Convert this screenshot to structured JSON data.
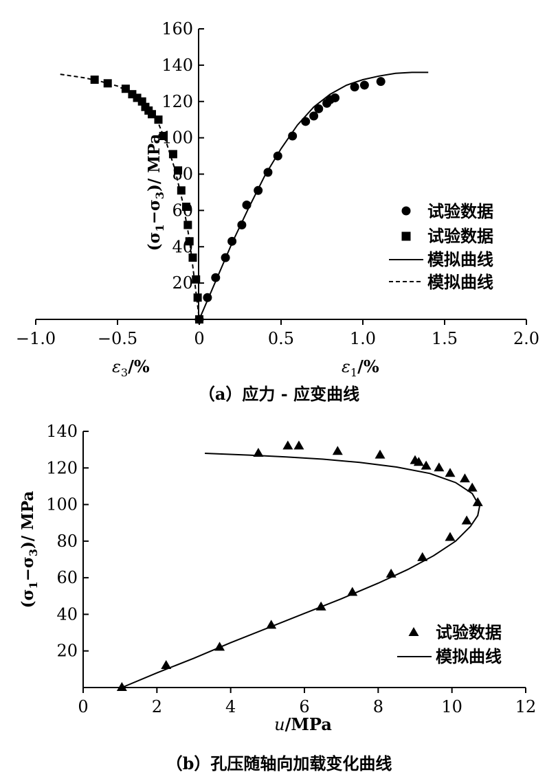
{
  "chart_data": [
    {
      "id": "a",
      "type": "scatter+line",
      "caption": "（a）应力 - 应变曲线",
      "ylabel": "(σ1−σ3)/ MPa",
      "ylabel_parts": {
        "open": "(σ",
        "sub1": "1",
        "minus": "−σ",
        "sub3": "3",
        "close": ")/ MPa"
      },
      "xlabel_left": {
        "main": "ε",
        "sub": "3",
        "unit": "/%"
      },
      "xlabel_right": {
        "main": "ε",
        "sub": "1",
        "unit": "/%"
      },
      "xlim": [
        -1.0,
        2.0
      ],
      "ylim": [
        0,
        160
      ],
      "xticks": [
        -1.0,
        -0.5,
        0,
        0.5,
        1.0,
        1.5,
        2.0
      ],
      "xtick_labels": [
        "−1.0",
        "−0.5",
        "0",
        "0.5",
        "1.0",
        "1.5",
        "2.0"
      ],
      "yticks": [
        20,
        40,
        60,
        80,
        100,
        120,
        140,
        160
      ],
      "ytick_labels": [
        "20",
        "40",
        "60",
        "80",
        "100",
        "120",
        "140",
        "160"
      ],
      "legend": [
        {
          "label": "试验数据",
          "marker": "circle"
        },
        {
          "label": "试验数据",
          "marker": "square"
        },
        {
          "label": "模拟曲线",
          "line": "solid"
        },
        {
          "label": "模拟曲线",
          "line": "dashed"
        }
      ],
      "series": [
        {
          "name": "试验数据 ε1",
          "marker": "circle",
          "x": [
            0.0,
            0.05,
            0.1,
            0.16,
            0.2,
            0.26,
            0.29,
            0.36,
            0.42,
            0.48,
            0.57,
            0.65,
            0.7,
            0.73,
            0.78,
            0.8,
            0.83,
            0.95,
            1.01,
            1.11
          ],
          "y": [
            0,
            12,
            23,
            34,
            43,
            52,
            63,
            71,
            81,
            90,
            101,
            109,
            112,
            116,
            119,
            121,
            122,
            128,
            129,
            131
          ]
        },
        {
          "name": "试验数据 ε3",
          "marker": "square",
          "x": [
            -0.64,
            -0.56,
            -0.45,
            -0.41,
            -0.38,
            -0.35,
            -0.33,
            -0.31,
            -0.29,
            -0.25,
            -0.22,
            -0.16,
            -0.13,
            -0.11,
            -0.08,
            -0.07,
            -0.06,
            -0.04,
            -0.02,
            -0.01,
            0.0
          ],
          "y": [
            132,
            130,
            127,
            124,
            122,
            120,
            117,
            115,
            113,
            110,
            101,
            91,
            82,
            71,
            62,
            52,
            43,
            34,
            22,
            12,
            0
          ]
        },
        {
          "name": "模拟曲线 ε1",
          "line": "solid",
          "x": [
            0.0,
            0.1,
            0.2,
            0.3,
            0.4,
            0.5,
            0.6,
            0.7,
            0.8,
            0.9,
            1.0,
            1.1,
            1.2,
            1.3,
            1.4
          ],
          "y": [
            0,
            21,
            42,
            61,
            79,
            94,
            107,
            117,
            124,
            129,
            132,
            134,
            135.5,
            136,
            136
          ]
        },
        {
          "name": "模拟曲线 ε3",
          "line": "dashed",
          "x": [
            -0.85,
            -0.7,
            -0.6,
            -0.5,
            -0.4,
            -0.3,
            -0.25,
            -0.2,
            -0.15,
            -0.1,
            -0.06,
            -0.03,
            0.0
          ],
          "y": [
            135,
            133,
            131,
            128.5,
            124,
            116,
            108,
            97,
            83,
            64,
            44,
            22,
            0
          ]
        }
      ]
    },
    {
      "id": "b",
      "type": "scatter+line",
      "caption": "（b）孔压随轴向加载变化曲线",
      "ylabel": "(σ1−σ3)/ MPa",
      "ylabel_parts": {
        "open": "(σ",
        "sub1": "1",
        "minus": "−σ",
        "sub3": "3",
        "close": ")/ MPa"
      },
      "xlabel": {
        "main": "u",
        "unit": "/MPa"
      },
      "xlim": [
        0,
        12
      ],
      "ylim": [
        0,
        140
      ],
      "xticks": [
        0,
        2,
        4,
        6,
        8,
        10,
        12
      ],
      "xtick_labels": [
        "0",
        "2",
        "4",
        "6",
        "8",
        "10",
        "12"
      ],
      "yticks": [
        20,
        40,
        60,
        80,
        100,
        120,
        140
      ],
      "ytick_labels": [
        "20",
        "40",
        "60",
        "80",
        "100",
        "120",
        "140"
      ],
      "legend": [
        {
          "label": "试验数据",
          "marker": "triangle"
        },
        {
          "label": "模拟曲线",
          "line": "solid"
        }
      ],
      "series": [
        {
          "name": "试验数据",
          "marker": "triangle",
          "x": [
            1.05,
            2.25,
            3.7,
            5.1,
            6.45,
            7.3,
            8.35,
            9.2,
            9.95,
            10.4,
            10.7,
            10.55,
            10.35,
            9.95,
            9.65,
            9.3,
            9.1,
            9.0,
            8.05,
            6.9,
            5.85,
            5.55,
            4.75
          ],
          "y": [
            0,
            12,
            22,
            34,
            44,
            52,
            62,
            71,
            82,
            91,
            101,
            109,
            114,
            117,
            120,
            121,
            123,
            124,
            127,
            129,
            132,
            132,
            128
          ]
        },
        {
          "name": "模拟曲线",
          "line": "solid",
          "x": [
            1.05,
            2.0,
            3.0,
            4.0,
            5.0,
            6.0,
            7.0,
            8.0,
            8.8,
            9.5,
            10.1,
            10.5,
            10.7,
            10.75,
            10.55,
            10.1,
            9.4,
            8.5,
            7.5,
            6.5,
            5.5,
            4.5,
            3.3
          ],
          "y": [
            0,
            8,
            16,
            24.5,
            32.5,
            40.5,
            48.5,
            57,
            64.5,
            72,
            80,
            88,
            94,
            99,
            106,
            112,
            117,
            120.5,
            123,
            124.8,
            126,
            127,
            128
          ]
        }
      ]
    }
  ]
}
